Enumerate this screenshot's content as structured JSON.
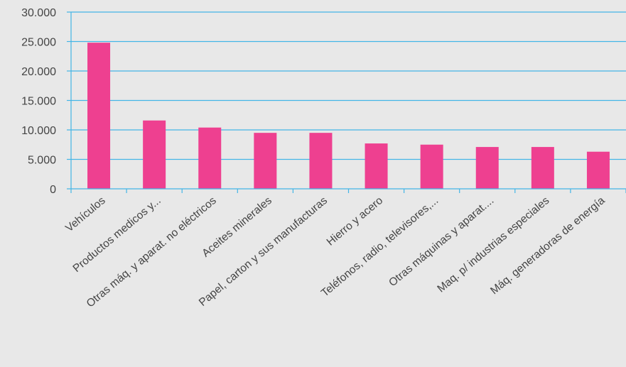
{
  "chart_data": {
    "type": "bar",
    "categories": [
      "Vehículos",
      "Productos medicos y...",
      "Otras máq. y aparat. no eléctricos",
      "Aceites minerales",
      "Papel, carton y sus manufacturas",
      "Hierro y acero",
      "Teléfonos, radio, televisores,...",
      "Otras máquinas y aparat....",
      "Maq. p/ industrias especiales",
      "Máq. generadoras de energía"
    ],
    "values": [
      24800,
      11600,
      10400,
      9500,
      9500,
      7700,
      7500,
      7100,
      7100,
      6300
    ],
    "ylim": [
      0,
      30000
    ],
    "yticks": [
      0,
      5000,
      10000,
      15000,
      20000,
      25000,
      30000
    ],
    "ytick_labels": [
      "0",
      "5.000",
      "10.000",
      "15.000",
      "20.000",
      "25.000",
      "30.000"
    ],
    "grid": true,
    "legend": "none",
    "colors": {
      "bar": "#ee4090",
      "grid": "#43b5e6",
      "axis": "#43b5e6",
      "text": "#444444",
      "background": "#e8e8e8"
    }
  }
}
